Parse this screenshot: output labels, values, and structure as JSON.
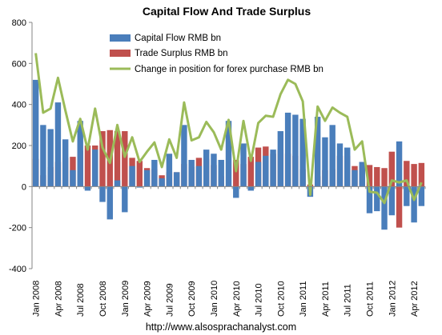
{
  "chart_data": {
    "type": "bar",
    "title": "Capital Flow And Trade Surplus",
    "footer": "http://www.alsosprachanalyst.com",
    "ylim": [
      -400,
      800
    ],
    "yticks": [
      "800",
      "600",
      "400",
      "200",
      "0",
      "-200",
      "-400"
    ],
    "grid": false,
    "legend_position": "top-center",
    "colors": {
      "capital_flow": "#4a7ebb",
      "trade_surplus": "#c0504d",
      "forex_change": "#9bbb59"
    },
    "categories": [
      "Jan 2008",
      "Feb 2008",
      "Mar 2008",
      "Apr 2008",
      "May 2008",
      "Jun 2008",
      "Jul 2008",
      "Aug 2008",
      "Sep 2008",
      "Oct 2008",
      "Nov 2008",
      "Dec 2008",
      "Jan 2009",
      "Feb 2009",
      "Mar 2009",
      "Apr 2009",
      "May 2009",
      "Jun 2009",
      "Jul 2009",
      "Aug 2009",
      "Sep 2009",
      "Oct 2009",
      "Nov 2009",
      "Dec 2009",
      "Jan 2010",
      "Feb 2010",
      "Mar 2010",
      "Apr 2010",
      "May 2010",
      "Jun 2010",
      "Jul 2010",
      "Aug 2010",
      "Sep 2010",
      "Oct 2010",
      "Nov 2010",
      "Dec 2010",
      "Jan 2011",
      "Feb 2011",
      "Mar 2011",
      "Apr 2011",
      "May 2011",
      "Jun 2011",
      "Jul 2011",
      "Aug 2011",
      "Sep 2011",
      "Oct 2011",
      "Nov 2011",
      "Dec 2011",
      "Jan 2012",
      "Feb 2012",
      "Mar 2012",
      "Apr 2012",
      "May 2012"
    ],
    "xticks": [
      "Jan 2008",
      "Apr 2008",
      "Jul 2008",
      "Oct 2008",
      "Jan 2009",
      "Apr 2009",
      "Jul 2009",
      "Oct 2009",
      "Jan 2010",
      "Apr 2010",
      "Jul 2010",
      "Oct 2010",
      "Jan 2011",
      "Apr 2011",
      "Jul 2011",
      "Oct 2011",
      "Jan 2012",
      "Apr 2012"
    ],
    "series": [
      {
        "name": "Capital Flow RMB bn",
        "key": "capital_flow",
        "values": [
          520,
          300,
          280,
          410,
          230,
          80,
          320,
          -20,
          180,
          -75,
          -160,
          30,
          -125,
          100,
          -5,
          80,
          130,
          40,
          160,
          70,
          300,
          130,
          100,
          180,
          160,
          130,
          320,
          -55,
          210,
          -20,
          120,
          150,
          180,
          270,
          360,
          350,
          330,
          -50,
          340,
          240,
          300,
          210,
          190,
          80,
          120,
          -130,
          -120,
          -210,
          -140,
          220,
          -95,
          -175,
          -95
        ]
      },
      {
        "name": "Trade Surplus RMB bn",
        "key": "trade_surplus",
        "values": [
          135,
          55,
          95,
          120,
          140,
          145,
          175,
          200,
          200,
          270,
          275,
          270,
          270,
          140,
          125,
          90,
          85,
          55,
          70,
          70,
          110,
          95,
          140,
          135,
          105,
          50,
          5,
          130,
          110,
          145,
          190,
          195,
          160,
          180,
          160,
          150,
          85,
          10,
          50,
          80,
          85,
          150,
          150,
          100,
          100,
          105,
          95,
          90,
          170,
          -200,
          125,
          110,
          115
        ]
      },
      {
        "name": "Change in position for forex purchase RMB bn",
        "key": "forex_change",
        "values": [
          650,
          360,
          380,
          530,
          370,
          220,
          330,
          180,
          380,
          190,
          115,
          300,
          145,
          240,
          120,
          170,
          215,
          95,
          230,
          140,
          410,
          225,
          240,
          315,
          265,
          180,
          325,
          75,
          320,
          125,
          310,
          345,
          340,
          450,
          520,
          500,
          415,
          -40,
          390,
          320,
          385,
          360,
          340,
          180,
          220,
          -25,
          -30,
          -80,
          30,
          20,
          30,
          -65,
          20
        ]
      }
    ]
  }
}
